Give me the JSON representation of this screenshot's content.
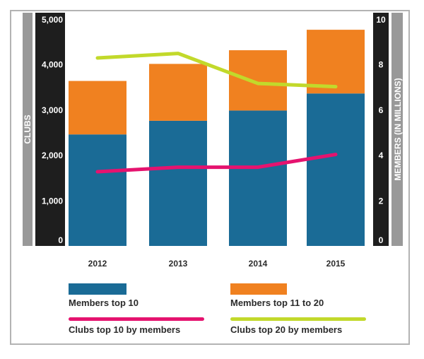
{
  "chart_data": {
    "type": "bar",
    "categories": [
      "2012",
      "2013",
      "2014",
      "2015"
    ],
    "left_axis": {
      "label": "CLUBS",
      "ylim": [
        0,
        5000
      ],
      "ticks": [
        "0",
        "1,000",
        "2,000",
        "3,000",
        "4,000",
        "5,000"
      ]
    },
    "right_axis": {
      "label": "MEMBERS (IN MILLIONS)",
      "ylim": [
        0,
        10
      ],
      "ticks": [
        "0",
        "2",
        "4",
        "6",
        "8",
        "10"
      ]
    },
    "bar_series": [
      {
        "name": "Members top 10",
        "axis": "right",
        "values": [
          4.9,
          5.5,
          5.95,
          6.7
        ],
        "color": "#1a6b96"
      },
      {
        "name": "Members top 11 to 20",
        "axis": "right",
        "values": [
          2.35,
          2.5,
          2.65,
          2.8
        ],
        "color": "#f08120"
      }
    ],
    "line_series": [
      {
        "name": "Clubs top 10 by members",
        "axis": "left",
        "values": [
          1630,
          1730,
          1730,
          2010
        ],
        "color": "#e5136f"
      },
      {
        "name": "Clubs top 20 by members",
        "axis": "left",
        "values": [
          4130,
          4230,
          3570,
          3500
        ],
        "color": "#c2d92b"
      }
    ],
    "stacked": true,
    "grid": false,
    "legend_position": "bottom"
  }
}
